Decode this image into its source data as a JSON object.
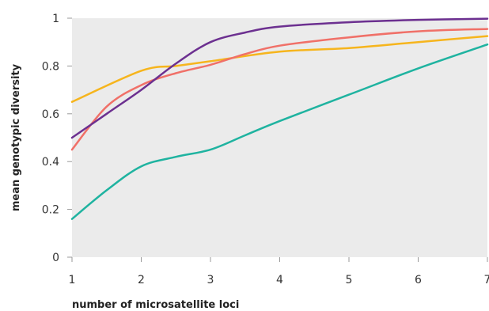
{
  "chart_data": {
    "type": "line",
    "xlabel": "number of microsatellite loci",
    "ylabel": "mean genotypic diversity",
    "xlim": [
      1,
      7
    ],
    "ylim": [
      0,
      1
    ],
    "x_ticks": [
      "1",
      "2",
      "3",
      "4",
      "5",
      "6",
      "7"
    ],
    "y_ticks": [
      "0",
      "0.2",
      "0.4",
      "0.6",
      "0.8",
      "1"
    ],
    "grid": false,
    "plot_background": "#ebebeb",
    "series": [
      {
        "color": "#f6b51d",
        "x": [
          1,
          2,
          2.5,
          3,
          4,
          5,
          6,
          7
        ],
        "y": [
          0.65,
          0.78,
          0.8,
          0.82,
          0.86,
          0.875,
          0.9,
          0.925
        ]
      },
      {
        "color": "#f07068",
        "x": [
          1,
          1.5,
          2,
          2.5,
          3,
          3.5,
          4,
          5,
          6,
          7
        ],
        "y": [
          0.45,
          0.63,
          0.72,
          0.77,
          0.805,
          0.85,
          0.885,
          0.92,
          0.945,
          0.955
        ]
      },
      {
        "color": "#6c3090",
        "x": [
          1,
          1.5,
          2,
          2.5,
          3,
          3.5,
          4,
          5,
          6,
          7
        ],
        "y": [
          0.5,
          0.6,
          0.7,
          0.81,
          0.9,
          0.94,
          0.965,
          0.983,
          0.993,
          0.998
        ]
      },
      {
        "color": "#1fb3a0",
        "x": [
          1,
          1.5,
          2,
          2.5,
          3,
          3.5,
          4,
          5,
          6,
          7
        ],
        "y": [
          0.16,
          0.28,
          0.38,
          0.42,
          0.45,
          0.51,
          0.57,
          0.68,
          0.79,
          0.89
        ]
      }
    ]
  }
}
